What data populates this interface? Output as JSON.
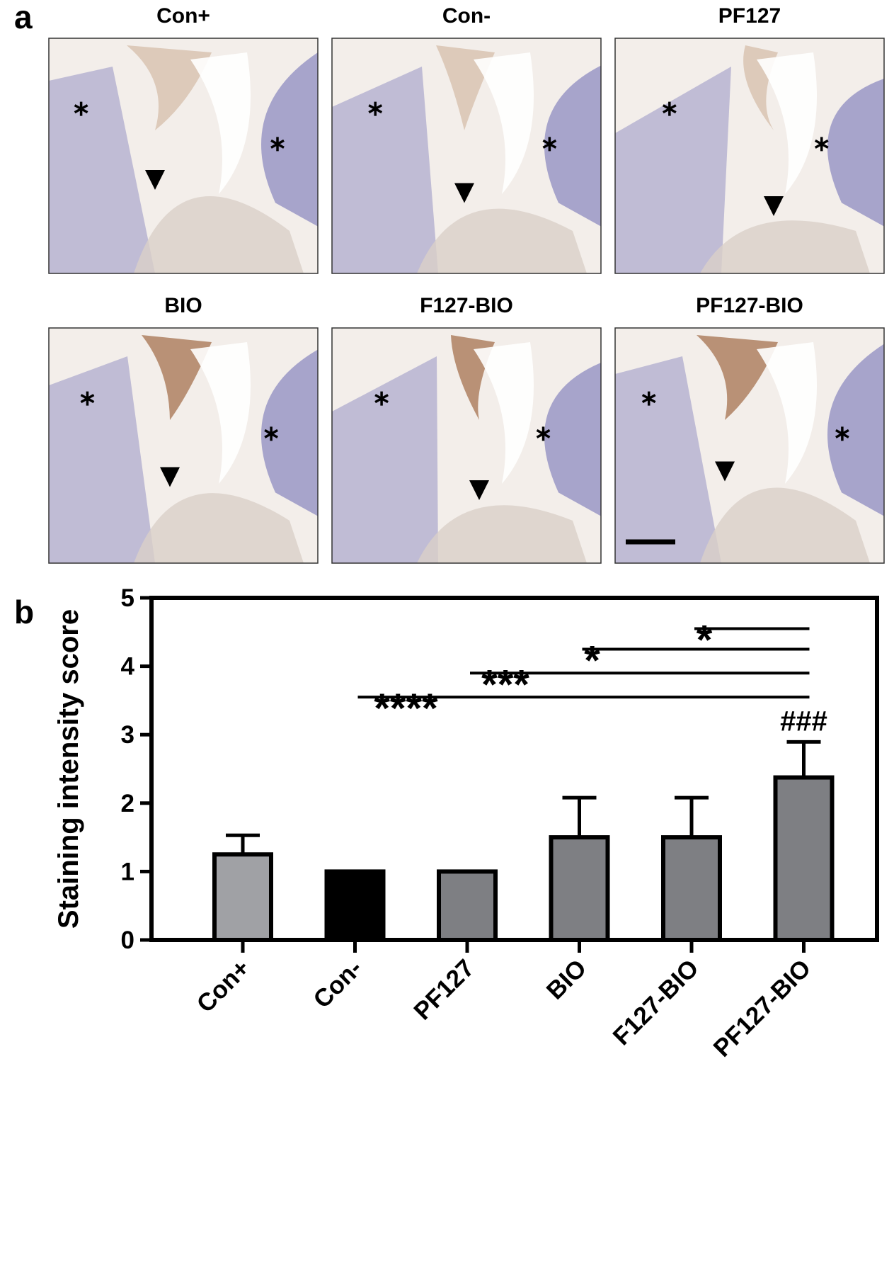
{
  "panel_labels": [
    "a",
    "b"
  ],
  "images": [
    {
      "title": "Con+"
    },
    {
      "title": "Con-"
    },
    {
      "title": "PF127"
    },
    {
      "title": "BIO"
    },
    {
      "title": "F127-BIO"
    },
    {
      "title": "PF127-BIO"
    }
  ],
  "chart_data": {
    "type": "bar",
    "ylabel": "Staining intensity score",
    "categories": [
      "Con+",
      "Con-",
      "PF127",
      "BIO",
      "F127-BIO",
      "PF127-BIO"
    ],
    "values": [
      1.25,
      1,
      1,
      1.5,
      1.5,
      2.375
    ],
    "errors": [
      0.28,
      0,
      0,
      0.58,
      0.58,
      0.52
    ],
    "colors": [
      "#a0a1a5",
      "#000000",
      "#7e7f83",
      "#7e7f83",
      "#7e7f83",
      "#7e7f83"
    ],
    "ylim": [
      0,
      5
    ],
    "yticks": [
      0,
      1,
      2,
      3,
      4,
      5
    ],
    "significance": [
      {
        "from": "Con-",
        "to": "PF127-BIO",
        "y": 3.55,
        "label": "****"
      },
      {
        "from": "PF127",
        "to": "PF127-BIO",
        "y": 3.9,
        "label": "***"
      },
      {
        "from": "BIO",
        "to": "PF127-BIO",
        "y": 4.25,
        "label": "*"
      },
      {
        "from": "F127-BIO",
        "to": "PF127-BIO",
        "y": 4.55,
        "label": "*"
      }
    ],
    "point_annotations": [
      {
        "category": "PF127-BIO",
        "label": "###"
      }
    ]
  }
}
